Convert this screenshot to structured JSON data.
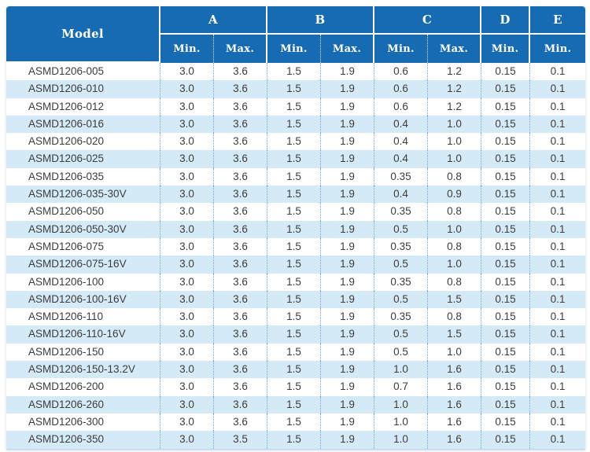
{
  "table": {
    "columns": {
      "model_label": "Model",
      "groups": [
        {
          "label": "A",
          "subs": [
            "Min.",
            "Max."
          ]
        },
        {
          "label": "B",
          "subs": [
            "Min.",
            "Max."
          ]
        },
        {
          "label": "C",
          "subs": [
            "Min.",
            "Max."
          ]
        },
        {
          "label": "D",
          "subs": [
            "Min."
          ]
        },
        {
          "label": "E",
          "subs": [
            "Min."
          ]
        }
      ]
    },
    "rows": [
      {
        "model": "ASMD1206-005",
        "values": [
          "3.0",
          "3.6",
          "1.5",
          "1.9",
          "0.6",
          "1.2",
          "0.15",
          "0.1"
        ]
      },
      {
        "model": "ASMD1206-010",
        "values": [
          "3.0",
          "3.6",
          "1.5",
          "1.9",
          "0.6",
          "1.2",
          "0.15",
          "0.1"
        ]
      },
      {
        "model": "ASMD1206-012",
        "values": [
          "3.0",
          "3.6",
          "1.5",
          "1.9",
          "0.6",
          "1.2",
          "0.15",
          "0.1"
        ]
      },
      {
        "model": "ASMD1206-016",
        "values": [
          "3.0",
          "3.6",
          "1.5",
          "1.9",
          "0.4",
          "1.0",
          "0.15",
          "0.1"
        ]
      },
      {
        "model": "ASMD1206-020",
        "values": [
          "3.0",
          "3.6",
          "1.5",
          "1.9",
          "0.4",
          "1.0",
          "0.15",
          "0.1"
        ]
      },
      {
        "model": "ASMD1206-025",
        "values": [
          "3.0",
          "3.6",
          "1.5",
          "1.9",
          "0.4",
          "1.0",
          "0.15",
          "0.1"
        ]
      },
      {
        "model": "ASMD1206-035",
        "values": [
          "3.0",
          "3.6",
          "1.5",
          "1.9",
          "0.35",
          "0.8",
          "0.15",
          "0.1"
        ]
      },
      {
        "model": "ASMD1206-035-30V",
        "values": [
          "3.0",
          "3.6",
          "1.5",
          "1.9",
          "0.4",
          "0.9",
          "0.15",
          "0.1"
        ]
      },
      {
        "model": "ASMD1206-050",
        "values": [
          "3.0",
          "3.6",
          "1.5",
          "1.9",
          "0.35",
          "0.8",
          "0.15",
          "0.1"
        ]
      },
      {
        "model": "ASMD1206-050-30V",
        "values": [
          "3.0",
          "3.6",
          "1.5",
          "1.9",
          "0.5",
          "1.0",
          "0.15",
          "0.1"
        ]
      },
      {
        "model": "ASMD1206-075",
        "values": [
          "3.0",
          "3.6",
          "1.5",
          "1.9",
          "0.35",
          "0.8",
          "0.15",
          "0.1"
        ]
      },
      {
        "model": "ASMD1206-075-16V",
        "values": [
          "3.0",
          "3.6",
          "1.5",
          "1.9",
          "0.5",
          "1.0",
          "0.15",
          "0.1"
        ]
      },
      {
        "model": "ASMD1206-100",
        "values": [
          "3.0",
          "3.6",
          "1.5",
          "1.9",
          "0.35",
          "0.8",
          "0.15",
          "0.1"
        ]
      },
      {
        "model": "ASMD1206-100-16V",
        "values": [
          "3.0",
          "3.6",
          "1.5",
          "1.9",
          "0.5",
          "1.5",
          "0.15",
          "0.1"
        ]
      },
      {
        "model": "ASMD1206-110",
        "values": [
          "3.0",
          "3.6",
          "1.5",
          "1.9",
          "0.35",
          "0.8",
          "0.15",
          "0.1"
        ]
      },
      {
        "model": "ASMD1206-110-16V",
        "values": [
          "3.0",
          "3.6",
          "1.5",
          "1.9",
          "0.5",
          "1.5",
          "0.15",
          "0.1"
        ]
      },
      {
        "model": "ASMD1206-150",
        "values": [
          "3.0",
          "3.6",
          "1.5",
          "1.9",
          "0.5",
          "1.0",
          "0.15",
          "0.1"
        ]
      },
      {
        "model": "ASMD1206-150-13.2V",
        "values": [
          "3.0",
          "3.6",
          "1.5",
          "1.9",
          "1.0",
          "1.6",
          "0.15",
          "0.1"
        ]
      },
      {
        "model": "ASMD1206-200",
        "values": [
          "3.0",
          "3.6",
          "1.5",
          "1.9",
          "0.7",
          "1.6",
          "0.15",
          "0.1"
        ]
      },
      {
        "model": "ASMD1206-260",
        "values": [
          "3.0",
          "3.6",
          "1.5",
          "1.9",
          "1.0",
          "1.6",
          "0.15",
          "0.1"
        ]
      },
      {
        "model": "ASMD1206-300",
        "values": [
          "3.0",
          "3.6",
          "1.5",
          "1.9",
          "1.0",
          "1.6",
          "0.15",
          "0.1"
        ]
      },
      {
        "model": "ASMD1206-350",
        "values": [
          "3.0",
          "3.5",
          "1.5",
          "1.9",
          "1.0",
          "1.6",
          "0.15",
          "0.1"
        ]
      }
    ]
  },
  "colors": {
    "header_bg": "#176bb2",
    "header_text": "#ffffff",
    "row_alt_bg": "#d4eaf7",
    "body_text": "#3c3c3c",
    "dotted_divider": "#6aa9dd"
  }
}
